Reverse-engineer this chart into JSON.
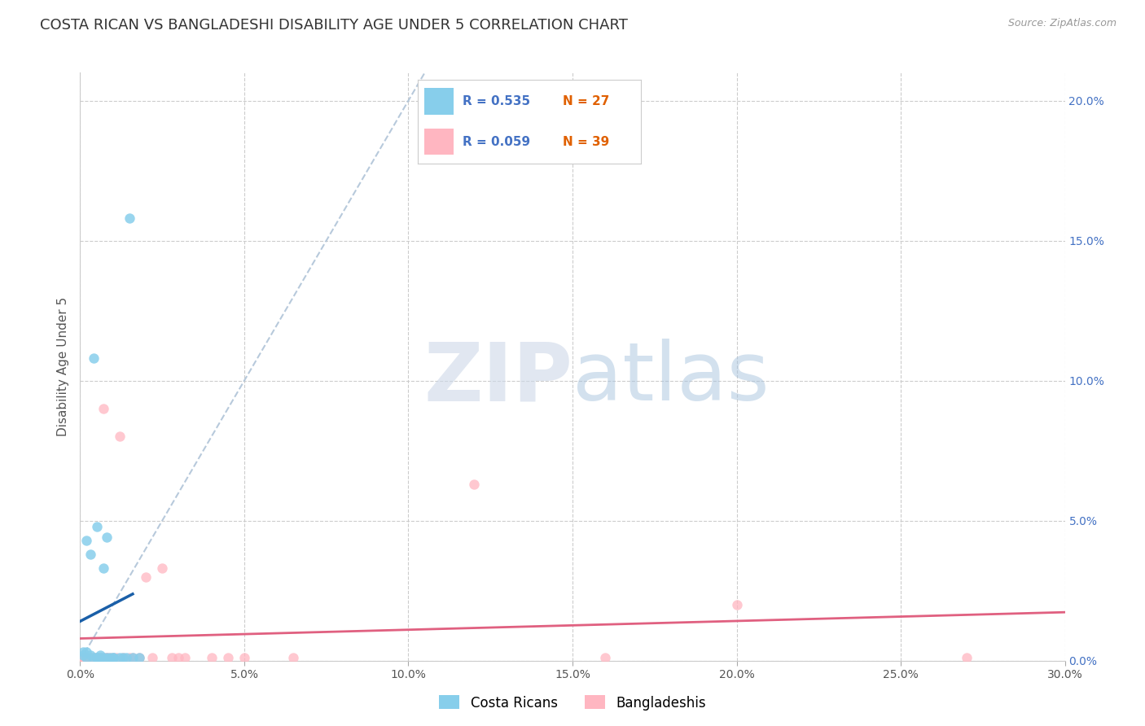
{
  "title": "COSTA RICAN VS BANGLADESHI DISABILITY AGE UNDER 5 CORRELATION CHART",
  "source": "Source: ZipAtlas.com",
  "ylabel": "Disability Age Under 5",
  "xlim": [
    0.0,
    0.3
  ],
  "ylim": [
    0.0,
    0.21
  ],
  "xtick_vals": [
    0.0,
    0.05,
    0.1,
    0.15,
    0.2,
    0.25,
    0.3
  ],
  "xtick_labels": [
    "0.0%",
    "5.0%",
    "10.0%",
    "15.0%",
    "20.0%",
    "25.0%",
    "30.0%"
  ],
  "ytick_right_vals": [
    0.0,
    0.05,
    0.1,
    0.15,
    0.2
  ],
  "ytick_right_labels": [
    "0.0%",
    "5.0%",
    "10.0%",
    "15.0%",
    "20.0%"
  ],
  "costa_rican_color": "#87CEEB",
  "bangladeshi_color": "#FFB6C1",
  "cr_line_color": "#1a5fa8",
  "bd_line_color": "#e06080",
  "diag_line_color": "#b0c4d8",
  "background_color": "#ffffff",
  "grid_color": "#cccccc",
  "title_fontsize": 13,
  "axis_label_fontsize": 11,
  "tick_fontsize": 10,
  "marker_size": 80,
  "right_tick_color": "#4472c4",
  "legend_R_color": "#4472c4",
  "legend_N_color": "#e06000",
  "cr_x": [
    0.001,
    0.001,
    0.002,
    0.002,
    0.002,
    0.003,
    0.003,
    0.004,
    0.004,
    0.005,
    0.005,
    0.005,
    0.006,
    0.006,
    0.007,
    0.007,
    0.008,
    0.008,
    0.009,
    0.01,
    0.01,
    0.012,
    0.013,
    0.014,
    0.015,
    0.016,
    0.018
  ],
  "cr_y": [
    0.002,
    0.003,
    0.001,
    0.003,
    0.043,
    0.002,
    0.038,
    0.001,
    0.108,
    0.001,
    0.048,
    0.001,
    0.001,
    0.002,
    0.001,
    0.033,
    0.001,
    0.044,
    0.001,
    0.001,
    0.001,
    0.001,
    0.001,
    0.001,
    0.158,
    0.001,
    0.001
  ],
  "bd_x": [
    0.001,
    0.001,
    0.002,
    0.002,
    0.003,
    0.003,
    0.003,
    0.004,
    0.004,
    0.005,
    0.005,
    0.006,
    0.006,
    0.007,
    0.007,
    0.008,
    0.008,
    0.009,
    0.01,
    0.011,
    0.012,
    0.013,
    0.015,
    0.016,
    0.018,
    0.02,
    0.022,
    0.025,
    0.028,
    0.03,
    0.032,
    0.04,
    0.045,
    0.05,
    0.065,
    0.12,
    0.16,
    0.2,
    0.27
  ],
  "bd_y": [
    0.001,
    0.001,
    0.001,
    0.001,
    0.001,
    0.001,
    0.001,
    0.001,
    0.001,
    0.001,
    0.001,
    0.001,
    0.001,
    0.09,
    0.001,
    0.001,
    0.001,
    0.001,
    0.001,
    0.001,
    0.08,
    0.001,
    0.001,
    0.001,
    0.001,
    0.03,
    0.001,
    0.033,
    0.001,
    0.001,
    0.001,
    0.001,
    0.001,
    0.001,
    0.001,
    0.063,
    0.001,
    0.02,
    0.001
  ],
  "legend_cr_label": "R = 0.535   N = 27",
  "legend_bd_label": "R = 0.059   N = 39"
}
